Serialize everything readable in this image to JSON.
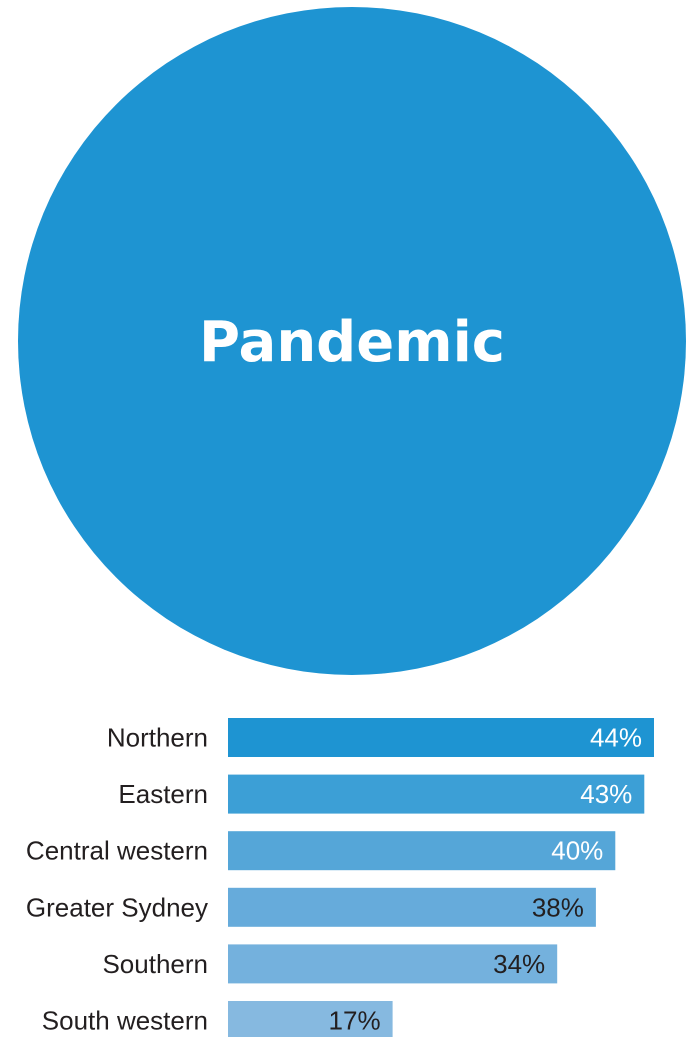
{
  "chart_data": {
    "type": "bar",
    "orientation": "horizontal",
    "title": "Pandemic",
    "categories": [
      "Northern",
      "Eastern",
      "Central western",
      "Greater Sydney",
      "Southern",
      "South western"
    ],
    "values": [
      44,
      43,
      40,
      38,
      34,
      17
    ],
    "value_labels": [
      "44%",
      "43%",
      "40%",
      "38%",
      "34%",
      "17%"
    ],
    "unit": "%",
    "xlim": [
      0,
      44
    ],
    "grid": false,
    "legend": "none",
    "colors": {
      "circle": "#1e94d2",
      "bars": [
        "#1e94d2",
        "#3c9fd6",
        "#55a6d8",
        "#66abdb",
        "#74b1dd",
        "#86b9e0"
      ],
      "value_label_light": "#ffffff",
      "value_label_dark": "#231f20",
      "category_label": "#231f20"
    }
  }
}
